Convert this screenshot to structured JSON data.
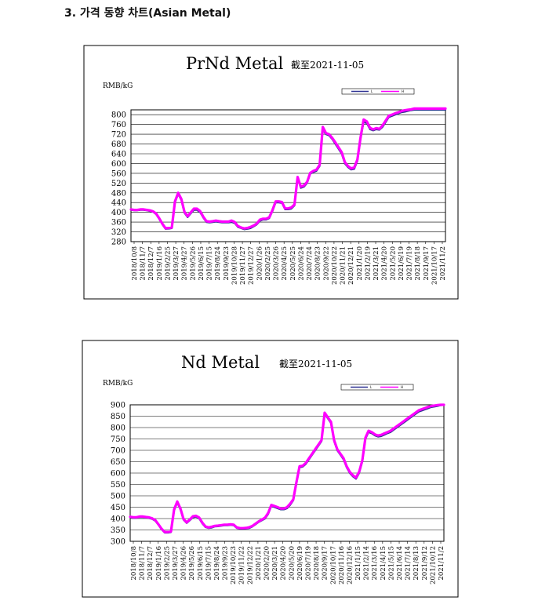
{
  "page": {
    "heading": "3. 가격 동향 차트(Asian Metal)"
  },
  "colors": {
    "series_low": "#2e3192",
    "series_high": "#ff00ff",
    "grid": "#000000",
    "frame": "#000000"
  },
  "chart_data": [
    {
      "type": "line",
      "title": "PrNd Metal",
      "date_note": "截至2021-11-05",
      "ylabel": "RMB/kG",
      "xlabel": "",
      "ylim": [
        280,
        820
      ],
      "yticks": [
        280,
        320,
        360,
        400,
        440,
        480,
        520,
        560,
        600,
        640,
        680,
        720,
        760,
        800
      ],
      "grid": true,
      "legend_position": "top-right",
      "legend": [
        "L",
        "H"
      ],
      "x_tick_labels": [
        "2018/10/8",
        "2018/11/7",
        "2018/12/7",
        "2019/1/16",
        "2019/2/25",
        "2019/3/27",
        "2019/4/27",
        "2019/5/26",
        "2019/6/15",
        "2019/7/15",
        "2019/8/24",
        "2019/9/23",
        "2019/10/28",
        "2019/11/27",
        "2019/12/27",
        "2020/1/26",
        "2020/2/25",
        "2020/3/26",
        "2020/4/25",
        "2020/5/25",
        "2020/6/24",
        "2020/7/24",
        "2020/8/23",
        "2020/9/22",
        "2020/10/22",
        "2020/11/21",
        "2020/12/21",
        "2021/1/20",
        "2021/2/19",
        "2021/3/21",
        "2021/4/20",
        "2021/5/20",
        "2021/6/19",
        "2021/7/19",
        "2021/8/18",
        "2021/9/17",
        "2021/10/17",
        "2021/11/2"
      ],
      "series": [
        {
          "name": "L",
          "x": [
            0,
            1,
            2,
            3,
            4,
            5,
            6,
            7,
            8,
            9,
            10,
            11,
            12,
            13,
            14,
            15,
            16,
            17,
            18,
            19,
            20,
            21,
            22,
            23,
            24,
            25,
            26,
            27,
            28,
            29,
            30,
            31,
            32,
            33,
            34,
            35,
            36,
            37,
            38,
            39,
            40,
            41,
            42,
            43,
            44,
            45,
            46,
            47,
            48,
            49,
            50,
            51,
            52,
            53,
            54,
            55,
            56,
            57,
            58,
            59,
            60,
            61,
            62,
            63,
            64,
            65,
            66,
            67,
            68,
            69,
            70,
            71,
            72,
            73,
            74,
            75,
            76,
            77,
            78,
            79,
            80,
            81,
            82,
            83,
            84,
            85,
            86,
            87,
            88,
            89,
            90,
            91,
            92,
            93,
            94,
            95,
            96,
            97,
            98,
            99,
            100
          ],
          "y": [
            410,
            408,
            408,
            410,
            410,
            408,
            405,
            402,
            392,
            372,
            350,
            332,
            333,
            335,
            440,
            475,
            450,
            398,
            380,
            395,
            410,
            410,
            400,
            378,
            360,
            358,
            360,
            362,
            360,
            358,
            358,
            358,
            360,
            356,
            340,
            335,
            330,
            332,
            335,
            342,
            350,
            365,
            370,
            370,
            376,
            405,
            440,
            440,
            438,
            412,
            412,
            415,
            428,
            540,
            500,
            505,
            520,
            558,
            565,
            570,
            590,
            740,
            720,
            715,
            700,
            680,
            660,
            640,
            600,
            585,
            575,
            578,
            610,
            700,
            770,
            765,
            740,
            735,
            740,
            738,
            750,
            770,
            790,
            795,
            800,
            805,
            810,
            812,
            815,
            818,
            820,
            820,
            820,
            820,
            820,
            820,
            820,
            820,
            820,
            820,
            820
          ]
        },
        {
          "name": "H",
          "x": [
            0,
            1,
            2,
            3,
            4,
            5,
            6,
            7,
            8,
            9,
            10,
            11,
            12,
            13,
            14,
            15,
            16,
            17,
            18,
            19,
            20,
            21,
            22,
            23,
            24,
            25,
            26,
            27,
            28,
            29,
            30,
            31,
            32,
            33,
            34,
            35,
            36,
            37,
            38,
            39,
            40,
            41,
            42,
            43,
            44,
            45,
            46,
            47,
            48,
            49,
            50,
            51,
            52,
            53,
            54,
            55,
            56,
            57,
            58,
            59,
            60,
            61,
            62,
            63,
            64,
            65,
            66,
            67,
            68,
            69,
            70,
            71,
            72,
            73,
            74,
            75,
            76,
            77,
            78,
            79,
            80,
            81,
            82,
            83,
            84,
            85,
            86,
            87,
            88,
            89,
            90,
            91,
            92,
            93,
            94,
            95,
            96,
            97,
            98,
            99,
            100
          ],
          "y": [
            412,
            410,
            410,
            412,
            412,
            410,
            408,
            404,
            395,
            375,
            353,
            335,
            336,
            338,
            445,
            480,
            455,
            402,
            384,
            400,
            415,
            415,
            405,
            382,
            364,
            362,
            364,
            366,
            364,
            362,
            362,
            362,
            366,
            360,
            344,
            338,
            334,
            336,
            340,
            346,
            354,
            370,
            374,
            374,
            380,
            410,
            445,
            445,
            442,
            416,
            416,
            420,
            432,
            545,
            505,
            510,
            525,
            562,
            570,
            575,
            595,
            750,
            725,
            720,
            705,
            686,
            666,
            646,
            606,
            590,
            580,
            584,
            616,
            706,
            780,
            772,
            746,
            740,
            745,
            742,
            756,
            776,
            796,
            800,
            806,
            810,
            815,
            818,
            820,
            822,
            825,
            825,
            825,
            825,
            825,
            825,
            825,
            825,
            825,
            825,
            825
          ]
        }
      ]
    },
    {
      "type": "line",
      "title": "Nd Metal",
      "date_note": "截至2021-11-05",
      "ylabel": "RMB/kG",
      "xlabel": "",
      "ylim": [
        300,
        900
      ],
      "yticks": [
        300,
        350,
        400,
        450,
        500,
        550,
        600,
        650,
        700,
        750,
        800,
        850,
        900
      ],
      "grid": true,
      "legend_position": "top-right",
      "legend": [
        "L",
        "H"
      ],
      "x_tick_labels": [
        "2018/10/8",
        "2018/11/7",
        "2018/12/7",
        "2019/1/16",
        "2019/2/25",
        "2019/3/27",
        "2019/4/26",
        "2019/5/26",
        "2019/6/15",
        "2019/7/15",
        "2019/8/24",
        "2019/9/23",
        "2019/10/23",
        "2019/11/22",
        "2019/12/22",
        "2020/1/21",
        "2020/2/20",
        "2020/3/21",
        "2020/4/20",
        "2020/5/20",
        "2020/6/19",
        "2020/7/19",
        "2020/8/18",
        "2020/9/17",
        "2020/10/17",
        "2020/11/16",
        "2020/12/16",
        "2021/1/15",
        "2021/2/14",
        "2021/3/16",
        "2021/4/15",
        "2021/5/15",
        "2021/6/14",
        "2021/7/14",
        "2021/8/13",
        "2021/9/12",
        "2021/10/12",
        "2021/11/2"
      ],
      "series": [
        {
          "name": "L",
          "x": [
            0,
            1,
            2,
            3,
            4,
            5,
            6,
            7,
            8,
            9,
            10,
            11,
            12,
            13,
            14,
            15,
            16,
            17,
            18,
            19,
            20,
            21,
            22,
            23,
            24,
            25,
            26,
            27,
            28,
            29,
            30,
            31,
            32,
            33,
            34,
            35,
            36,
            37,
            38,
            39,
            40,
            41,
            42,
            43,
            44,
            45,
            46,
            47,
            48,
            49,
            50,
            51,
            52,
            53,
            54,
            55,
            56,
            57,
            58,
            59,
            60,
            61,
            62,
            63,
            64,
            65,
            66,
            67,
            68,
            69,
            70,
            71,
            72,
            73,
            74,
            75,
            76,
            77,
            78,
            79,
            80,
            81,
            82,
            83,
            84,
            85,
            86,
            87,
            88,
            89,
            90,
            91,
            92,
            93,
            94,
            95,
            96,
            97,
            98,
            99,
            100
          ],
          "y": [
            405,
            403,
            403,
            406,
            406,
            404,
            402,
            398,
            390,
            372,
            352,
            338,
            338,
            340,
            435,
            470,
            440,
            395,
            380,
            392,
            405,
            408,
            400,
            378,
            362,
            358,
            360,
            365,
            366,
            368,
            370,
            370,
            372,
            370,
            358,
            355,
            355,
            356,
            358,
            365,
            375,
            385,
            392,
            400,
            420,
            455,
            450,
            445,
            440,
            440,
            445,
            460,
            480,
            555,
            625,
            628,
            640,
            660,
            680,
            700,
            720,
            740,
            860,
            840,
            820,
            740,
            700,
            680,
            660,
            625,
            600,
            585,
            575,
            600,
            650,
            750,
            780,
            775,
            765,
            760,
            762,
            768,
            775,
            780,
            790,
            800,
            810,
            820,
            830,
            840,
            850,
            860,
            870,
            875,
            880,
            885,
            890,
            892,
            895,
            898,
            900
          ]
        },
        {
          "name": "H",
          "x": [
            0,
            1,
            2,
            3,
            4,
            5,
            6,
            7,
            8,
            9,
            10,
            11,
            12,
            13,
            14,
            15,
            16,
            17,
            18,
            19,
            20,
            21,
            22,
            23,
            24,
            25,
            26,
            27,
            28,
            29,
            30,
            31,
            32,
            33,
            34,
            35,
            36,
            37,
            38,
            39,
            40,
            41,
            42,
            43,
            44,
            45,
            46,
            47,
            48,
            49,
            50,
            51,
            52,
            53,
            54,
            55,
            56,
            57,
            58,
            59,
            60,
            61,
            62,
            63,
            64,
            65,
            66,
            67,
            68,
            69,
            70,
            71,
            72,
            73,
            74,
            75,
            76,
            77,
            78,
            79,
            80,
            81,
            82,
            83,
            84,
            85,
            86,
            87,
            88,
            89,
            90,
            91,
            92,
            93,
            94,
            95,
            96,
            97,
            98,
            99,
            100
          ],
          "y": [
            408,
            406,
            406,
            409,
            409,
            407,
            405,
            401,
            393,
            375,
            355,
            341,
            341,
            343,
            440,
            475,
            445,
            398,
            383,
            396,
            410,
            412,
            404,
            382,
            365,
            361,
            364,
            368,
            369,
            371,
            373,
            373,
            375,
            373,
            361,
            358,
            358,
            359,
            362,
            368,
            378,
            388,
            396,
            404,
            425,
            460,
            455,
            450,
            444,
            444,
            450,
            465,
            485,
            560,
            630,
            632,
            645,
            665,
            685,
            705,
            725,
            745,
            865,
            845,
            825,
            745,
            705,
            685,
            665,
            630,
            605,
            590,
            580,
            606,
            656,
            756,
            786,
            780,
            770,
            765,
            768,
            774,
            780,
            786,
            796,
            806,
            816,
            826,
            836,
            846,
            856,
            866,
            876,
            881,
            886,
            891,
            895,
            897,
            899,
            900,
            900
          ]
        }
      ]
    }
  ]
}
